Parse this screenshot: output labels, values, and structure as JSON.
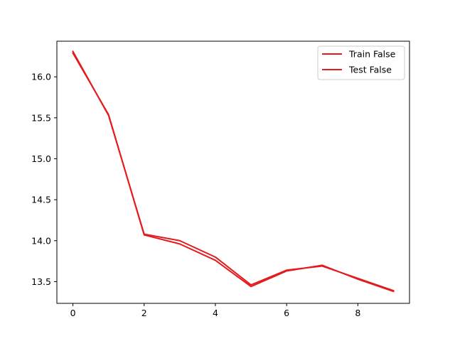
{
  "chart_data": {
    "type": "line",
    "title": "",
    "xlabel": "",
    "ylabel": "",
    "xlim": [
      -0.45,
      9.45
    ],
    "ylim": [
      13.235,
      16.435
    ],
    "xticks": [
      "0",
      "2",
      "4",
      "6",
      "8"
    ],
    "yticks": [
      "13.5",
      "14.0",
      "14.5",
      "15.0",
      "15.5",
      "16.0"
    ],
    "grid": false,
    "legend_position": "top-right",
    "x": [
      0,
      1,
      2,
      3,
      4,
      5,
      6,
      7,
      8,
      9
    ],
    "series": [
      {
        "name": "Train False",
        "color": "#e41a1c",
        "values": [
          16.31,
          15.53,
          14.08,
          14.0,
          13.8,
          13.46,
          13.64,
          13.69,
          13.54,
          13.39
        ]
      },
      {
        "name": "Test False",
        "color": "#e41a1c",
        "values": [
          16.29,
          15.54,
          14.07,
          13.96,
          13.76,
          13.44,
          13.63,
          13.7,
          13.53,
          13.38
        ]
      }
    ]
  }
}
